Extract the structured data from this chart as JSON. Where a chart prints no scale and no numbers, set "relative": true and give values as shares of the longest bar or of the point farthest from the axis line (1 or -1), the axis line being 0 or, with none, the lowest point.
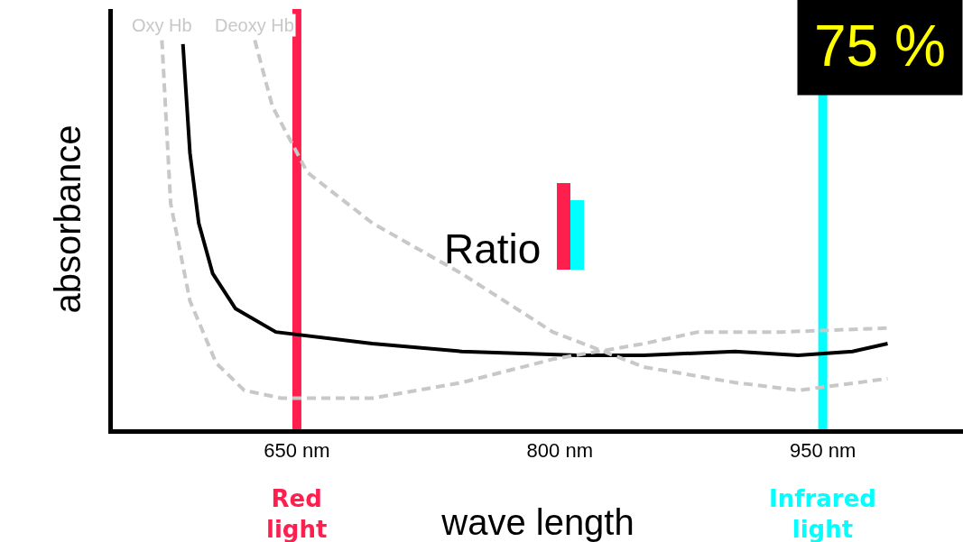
{
  "chart_data": {
    "type": "line",
    "relative": true,
    "xlabel": "wave length",
    "ylabel": "absorbance",
    "xlim": [
      545,
      1030
    ],
    "xticks": [
      {
        "value": 650,
        "label": "650 nm"
      },
      {
        "value": 800,
        "label": "800 nm"
      },
      {
        "value": 950,
        "label": "950 nm"
      }
    ],
    "series": [
      {
        "color": "#000000",
        "line_style": "solid",
        "x": [
          585,
          589,
          594,
          602,
          615,
          638,
          693,
          744,
          810,
          848,
          900,
          936,
          967,
          987
        ],
        "values": [
          0.99,
          0.71,
          0.53,
          0.4,
          0.31,
          0.25,
          0.22,
          0.2,
          0.19,
          0.19,
          0.2,
          0.19,
          0.2,
          0.22
        ]
      },
      {
        "name": "Oxy Hb",
        "color": "#c8c8c8",
        "line_style": "dashed",
        "x": [
          573,
          578,
          589,
          604,
          620,
          641,
          693,
          744,
          796,
          848,
          879,
          926,
          987
        ],
        "values": [
          1.0,
          0.58,
          0.33,
          0.17,
          0.1,
          0.08,
          0.08,
          0.12,
          0.18,
          0.22,
          0.25,
          0.25,
          0.26
        ]
      },
      {
        "name": "Deoxy Hb",
        "color": "#c8c8c8",
        "line_style": "dashed",
        "x": [
          626,
          636,
          656,
          693,
          744,
          796,
          848,
          900,
          936,
          987
        ],
        "values": [
          1.0,
          0.83,
          0.66,
          0.53,
          0.4,
          0.25,
          0.16,
          0.12,
          0.1,
          0.13
        ]
      }
    ],
    "ref_lines": [
      {
        "axis": "x",
        "value": 650,
        "label": "Red light",
        "color": "#ff1f4f"
      },
      {
        "axis": "x",
        "value": 950,
        "label": "Infrared light",
        "color": "#00ffff"
      }
    ],
    "annotations": [
      "Ratio",
      "75 %"
    ],
    "grid": false,
    "legend": false,
    "marker": "none"
  }
}
